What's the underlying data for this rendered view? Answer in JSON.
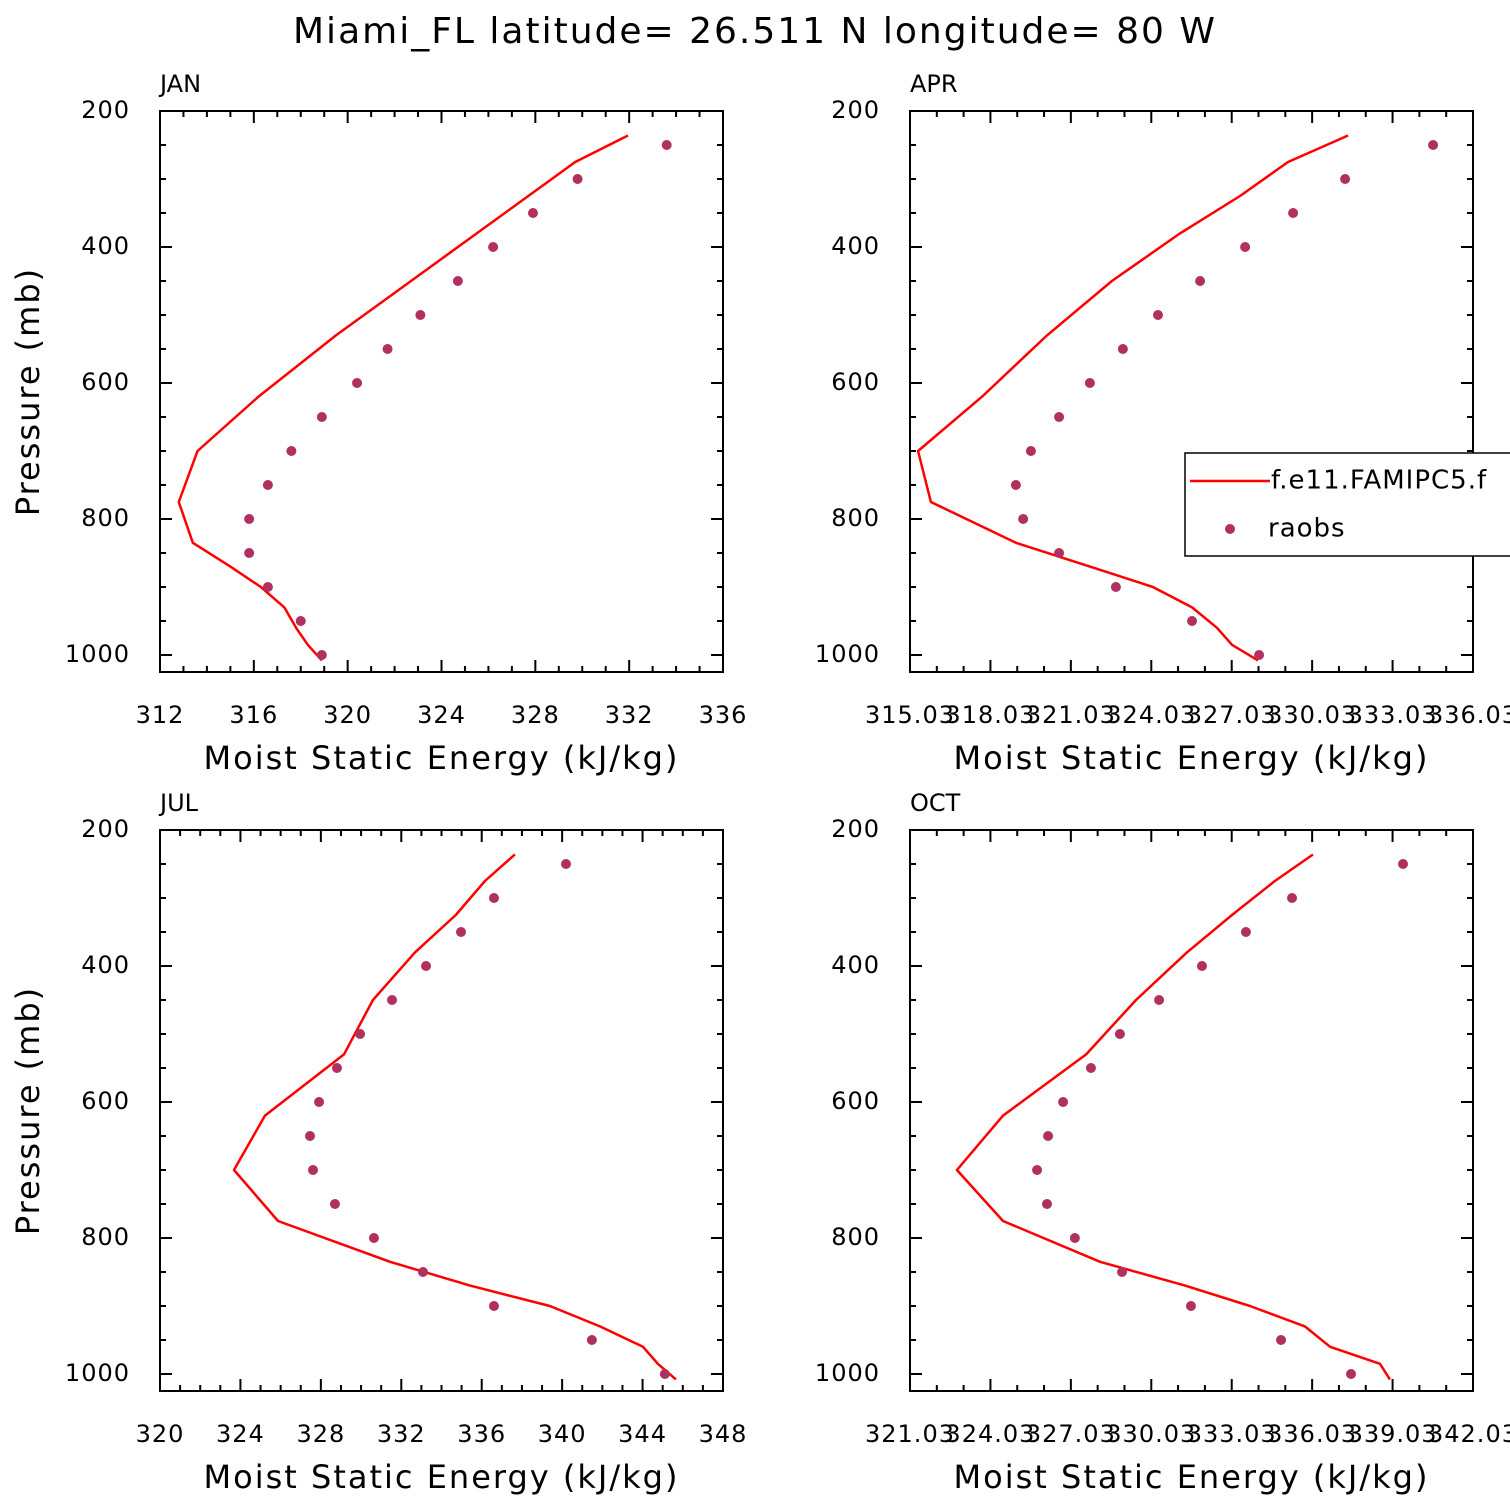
{
  "title": "Miami_FL  latitude= 26.511 N longitude= 80 W",
  "chart_data": [
    {
      "type": "line",
      "title": "JAN",
      "x_label": "Moist Static Energy (kJ/kg)",
      "y_label": "Pressure (mb)",
      "xlim": [
        312,
        336
      ],
      "xticks": [
        312,
        316,
        320,
        324,
        328,
        332,
        336
      ],
      "xminor": 4,
      "ylim": [
        200,
        1025
      ],
      "y_reversed": true,
      "yticks": [
        200,
        400,
        600,
        800,
        1000
      ],
      "yminor": 4,
      "series": [
        {
          "style": "line",
          "color": "#ff0000",
          "y": [
            236,
            275,
            325,
            380,
            450,
            530,
            620,
            700,
            775,
            835,
            870,
            900,
            930,
            960,
            985,
            1008
          ],
          "x": [
            331.95,
            329.7,
            327.7,
            325.5,
            322.7,
            319.5,
            316.2,
            313.6,
            312.8,
            313.4,
            315.0,
            316.3,
            317.3,
            317.8,
            318.3,
            318.9
          ]
        },
        {
          "style": "markers",
          "color": "#b03060",
          "y": [
            250,
            300,
            350,
            400,
            450,
            500,
            550,
            600,
            650,
            700,
            750,
            800,
            850,
            900,
            950,
            1000
          ],
          "x": [
            333.6,
            329.8,
            327.9,
            326.2,
            324.7,
            323.1,
            321.7,
            320.4,
            318.9,
            317.6,
            316.6,
            315.8,
            315.8,
            316.6,
            318.0,
            318.9
          ]
        }
      ]
    },
    {
      "type": "line",
      "title": "APR",
      "x_label": "Moist Static Energy (kJ/kg)",
      "xlim": [
        315.03,
        336.03
      ],
      "xticks": [
        315.03,
        318.03,
        321.03,
        324.03,
        327.03,
        330.03,
        333.03,
        336.03
      ],
      "xminor": 3,
      "ylim": [
        200,
        1025
      ],
      "y_reversed": true,
      "yticks": [
        200,
        400,
        600,
        800,
        1000
      ],
      "yminor": 4,
      "legend": "right",
      "series": [
        {
          "name": "f.e11.FAMIPC5.f",
          "style": "line",
          "color": "#ff0000",
          "y": [
            236,
            275,
            325,
            380,
            450,
            530,
            620,
            700,
            775,
            835,
            870,
            900,
            930,
            960,
            985,
            1008
          ],
          "x": [
            331.37,
            329.13,
            327.34,
            325.1,
            322.56,
            320.14,
            317.72,
            315.33,
            315.81,
            318.98,
            321.74,
            324.09,
            325.55,
            326.48,
            327.04,
            328.01
          ]
        },
        {
          "name": "raobs",
          "style": "markers",
          "color": "#b03060",
          "y": [
            250,
            300,
            350,
            400,
            450,
            500,
            550,
            600,
            650,
            700,
            750,
            800,
            850,
            900,
            950,
            1000
          ],
          "x": [
            334.54,
            331.26,
            329.32,
            327.53,
            325.85,
            324.28,
            322.97,
            321.74,
            320.59,
            319.54,
            318.98,
            319.25,
            320.59,
            322.71,
            325.55,
            328.05
          ]
        }
      ]
    },
    {
      "type": "line",
      "title": "JUL",
      "x_label": "Moist Static Energy (kJ/kg)",
      "y_label": "Pressure (mb)",
      "xlim": [
        320,
        348
      ],
      "xticks": [
        320,
        324,
        328,
        332,
        336,
        340,
        344,
        348
      ],
      "xminor": 4,
      "ylim": [
        200,
        1025
      ],
      "y_reversed": true,
      "yticks": [
        200,
        400,
        600,
        800,
        1000
      ],
      "yminor": 4,
      "series": [
        {
          "style": "line",
          "color": "#ff0000",
          "y": [
            236,
            275,
            325,
            380,
            450,
            530,
            620,
            700,
            775,
            835,
            870,
            900,
            930,
            960,
            985,
            1008
          ],
          "x": [
            337.65,
            336.16,
            334.71,
            332.68,
            330.59,
            329.15,
            325.22,
            323.68,
            325.87,
            331.44,
            335.42,
            339.39,
            341.88,
            344.02,
            344.76,
            345.66
          ]
        },
        {
          "style": "markers",
          "color": "#b03060",
          "y": [
            250,
            300,
            350,
            400,
            450,
            500,
            550,
            600,
            650,
            700,
            750,
            800,
            850,
            900,
            950,
            1000
          ],
          "x": [
            340.19,
            336.61,
            334.97,
            333.23,
            331.54,
            329.95,
            328.8,
            327.91,
            327.46,
            327.61,
            328.7,
            330.64,
            333.08,
            336.61,
            341.48,
            345.11
          ]
        }
      ]
    },
    {
      "type": "line",
      "title": "OCT",
      "x_label": "Moist Static Energy (kJ/kg)",
      "xlim": [
        321.03,
        342.03
      ],
      "xticks": [
        321.03,
        324.03,
        327.03,
        330.03,
        333.03,
        336.03,
        339.03,
        342.03
      ],
      "xminor": 3,
      "ylim": [
        200,
        1025
      ],
      "y_reversed": true,
      "yticks": [
        200,
        400,
        600,
        800,
        1000
      ],
      "yminor": 4,
      "series": [
        {
          "style": "line",
          "color": "#ff0000",
          "y": [
            236,
            275,
            325,
            380,
            450,
            530,
            620,
            700,
            775,
            835,
            870,
            900,
            930,
            960,
            985,
            1008
          ],
          "x": [
            336.06,
            334.64,
            333.04,
            331.36,
            329.46,
            327.6,
            324.5,
            322.78,
            324.5,
            328.12,
            331.29,
            333.71,
            335.76,
            336.7,
            338.56,
            338.93
          ]
        },
        {
          "style": "markers",
          "color": "#b03060",
          "y": [
            250,
            300,
            350,
            400,
            450,
            500,
            550,
            600,
            650,
            700,
            750,
            800,
            850,
            900,
            950,
            1000
          ],
          "x": [
            339.42,
            335.28,
            333.56,
            331.92,
            330.32,
            328.86,
            327.78,
            326.74,
            326.18,
            325.77,
            326.14,
            327.18,
            328.94,
            331.51,
            334.87,
            337.48
          ]
        }
      ]
    }
  ]
}
